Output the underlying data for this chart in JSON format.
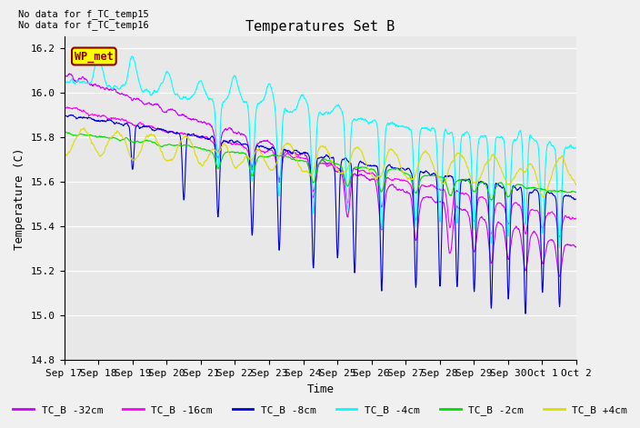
{
  "title": "Temperatures Set B",
  "xlabel": "Time",
  "ylabel": "Temperature (C)",
  "ylim": [
    14.8,
    16.25
  ],
  "yticks": [
    14.8,
    15.0,
    15.2,
    15.4,
    15.6,
    15.8,
    16.0,
    16.2
  ],
  "annotation_text": "No data for f_TC_temp15\nNo data for f_TC_temp16",
  "wp_met_label": "WP_met",
  "xtick_labels": [
    "Sep 17",
    "Sep 18",
    "Sep 19",
    "Sep 20",
    "Sep 21",
    "Sep 22",
    "Sep 23",
    "Sep 24",
    "Sep 25",
    "Sep 26",
    "Sep 27",
    "Sep 28",
    "Sep 29",
    "Sep 30",
    "Oct 1",
    "Oct 2"
  ],
  "series_labels": [
    "TC_B -32cm",
    "TC_B -16cm",
    "TC_B -8cm",
    "TC_B -4cm",
    "TC_B -2cm",
    "TC_B +4cm"
  ],
  "series_colors": [
    "#cc00ff",
    "#ff00ff",
    "#0000dd",
    "#00ffff",
    "#00dd00",
    "#dddd00"
  ],
  "plot_bg_color": "#e8e8e8",
  "fig_bg_color": "#f0f0f0",
  "grid_color": "#ffffff",
  "title_fontsize": 11,
  "label_fontsize": 9,
  "tick_fontsize": 8,
  "legend_fontsize": 8,
  "n_points": 1440
}
